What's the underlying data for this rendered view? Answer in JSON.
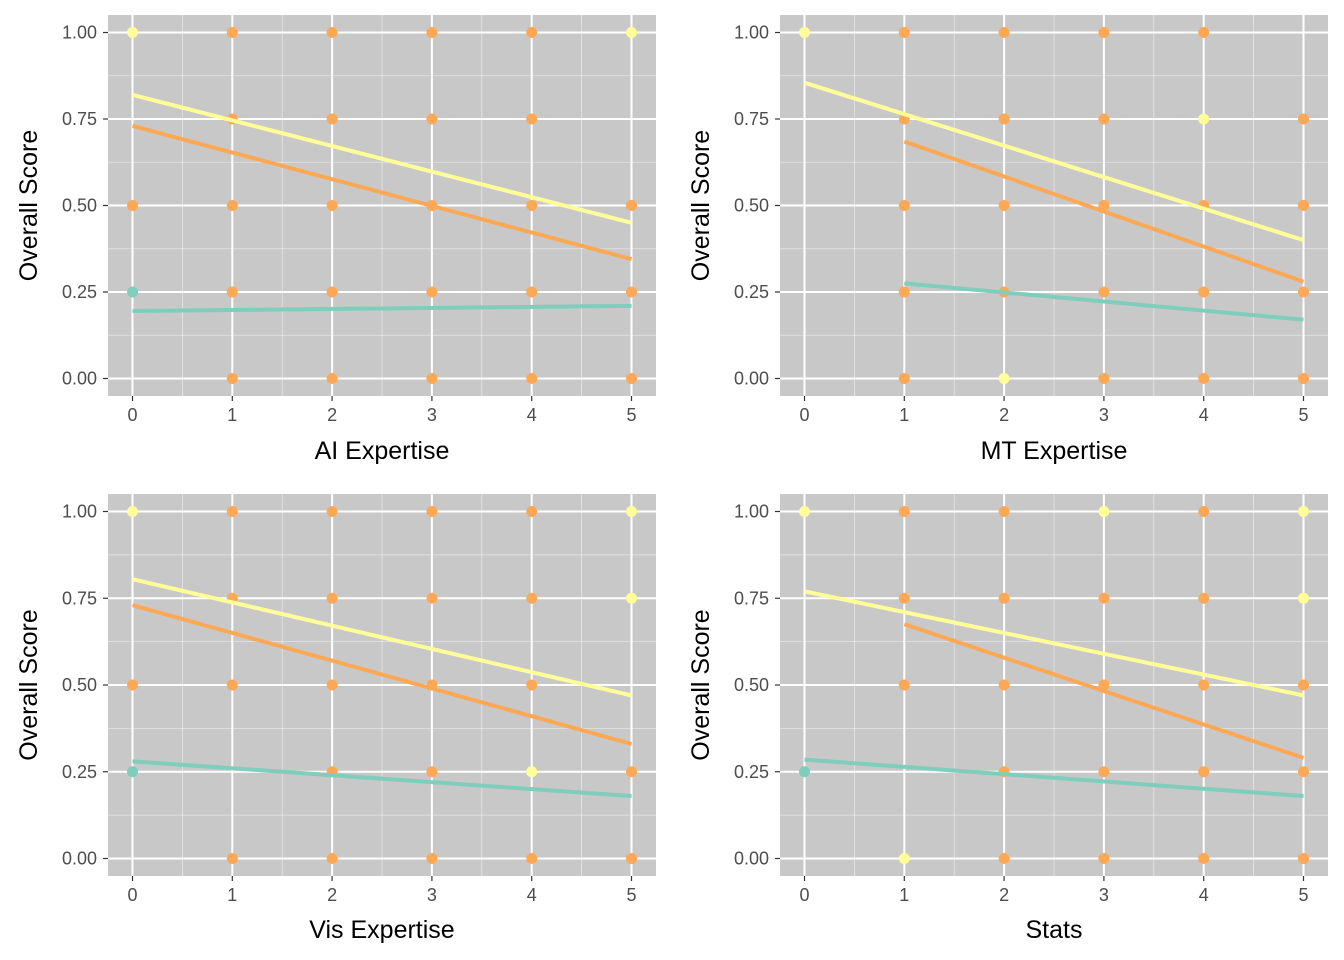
{
  "colors": {
    "panel_bg": "#C8C8C8",
    "grid": "#FFFFFF",
    "tick_text": "#4D4D4D",
    "yellow": "#FFFF99",
    "orange": "#FDA855",
    "teal": "#7FCDBB"
  },
  "chart_data": [
    {
      "type": "scatter",
      "xlabel": "AI Expertise",
      "ylabel": "Overall Score",
      "xlim": [
        0,
        5
      ],
      "ylim": [
        0,
        1
      ],
      "xticks": [
        "0",
        "1",
        "2",
        "3",
        "4",
        "5"
      ],
      "yticks": [
        "0.00",
        "0.25",
        "0.50",
        "0.75",
        "1.00"
      ],
      "grid": true,
      "legend": "none",
      "points": [
        {
          "x": 0,
          "y": 1,
          "color": "yellow"
        },
        {
          "x": 5,
          "y": 1,
          "color": "yellow"
        },
        {
          "x": 1,
          "y": 1,
          "color": "orange"
        },
        {
          "x": 2,
          "y": 1,
          "color": "orange"
        },
        {
          "x": 3,
          "y": 1,
          "color": "orange"
        },
        {
          "x": 4,
          "y": 1,
          "color": "orange"
        },
        {
          "x": 1,
          "y": 0.75,
          "color": "orange"
        },
        {
          "x": 2,
          "y": 0.75,
          "color": "orange"
        },
        {
          "x": 3,
          "y": 0.75,
          "color": "orange"
        },
        {
          "x": 4,
          "y": 0.75,
          "color": "orange"
        },
        {
          "x": 0,
          "y": 0.5,
          "color": "orange"
        },
        {
          "x": 1,
          "y": 0.5,
          "color": "orange"
        },
        {
          "x": 2,
          "y": 0.5,
          "color": "orange"
        },
        {
          "x": 3,
          "y": 0.5,
          "color": "orange"
        },
        {
          "x": 4,
          "y": 0.5,
          "color": "orange"
        },
        {
          "x": 5,
          "y": 0.5,
          "color": "orange"
        },
        {
          "x": 0,
          "y": 0.25,
          "color": "teal"
        },
        {
          "x": 1,
          "y": 0.25,
          "color": "orange"
        },
        {
          "x": 2,
          "y": 0.25,
          "color": "orange"
        },
        {
          "x": 3,
          "y": 0.25,
          "color": "orange"
        },
        {
          "x": 4,
          "y": 0.25,
          "color": "orange"
        },
        {
          "x": 5,
          "y": 0.25,
          "color": "orange"
        },
        {
          "x": 1,
          "y": 0,
          "color": "orange"
        },
        {
          "x": 2,
          "y": 0,
          "color": "orange"
        },
        {
          "x": 3,
          "y": 0,
          "color": "orange"
        },
        {
          "x": 4,
          "y": 0,
          "color": "orange"
        },
        {
          "x": 5,
          "y": 0,
          "color": "orange"
        }
      ],
      "lines": [
        {
          "color": "yellow",
          "x": [
            0,
            5
          ],
          "y": [
            0.82,
            0.45
          ]
        },
        {
          "color": "orange",
          "x": [
            0,
            5
          ],
          "y": [
            0.73,
            0.345
          ]
        },
        {
          "color": "teal",
          "x": [
            0,
            5
          ],
          "y": [
            0.195,
            0.21
          ]
        }
      ]
    },
    {
      "type": "scatter",
      "xlabel": "MT Expertise",
      "ylabel": "Overall Score",
      "xlim": [
        0,
        5
      ],
      "ylim": [
        0,
        1
      ],
      "xticks": [
        "0",
        "1",
        "2",
        "3",
        "4",
        "5"
      ],
      "yticks": [
        "0.00",
        "0.25",
        "0.50",
        "0.75",
        "1.00"
      ],
      "grid": true,
      "legend": "none",
      "points": [
        {
          "x": 0,
          "y": 1,
          "color": "yellow"
        },
        {
          "x": 1,
          "y": 1,
          "color": "orange"
        },
        {
          "x": 2,
          "y": 1,
          "color": "orange"
        },
        {
          "x": 3,
          "y": 1,
          "color": "orange"
        },
        {
          "x": 4,
          "y": 1,
          "color": "orange"
        },
        {
          "x": 1,
          "y": 0.75,
          "color": "orange"
        },
        {
          "x": 2,
          "y": 0.75,
          "color": "orange"
        },
        {
          "x": 3,
          "y": 0.75,
          "color": "orange"
        },
        {
          "x": 5,
          "y": 0.75,
          "color": "orange"
        },
        {
          "x": 4,
          "y": 0.75,
          "color": "yellow"
        },
        {
          "x": 1,
          "y": 0.5,
          "color": "orange"
        },
        {
          "x": 2,
          "y": 0.5,
          "color": "orange"
        },
        {
          "x": 3,
          "y": 0.5,
          "color": "orange"
        },
        {
          "x": 4,
          "y": 0.5,
          "color": "orange"
        },
        {
          "x": 5,
          "y": 0.5,
          "color": "orange"
        },
        {
          "x": 1,
          "y": 0.25,
          "color": "orange"
        },
        {
          "x": 2,
          "y": 0.25,
          "color": "orange"
        },
        {
          "x": 3,
          "y": 0.25,
          "color": "orange"
        },
        {
          "x": 4,
          "y": 0.25,
          "color": "orange"
        },
        {
          "x": 5,
          "y": 0.25,
          "color": "orange"
        },
        {
          "x": 1,
          "y": 0,
          "color": "orange"
        },
        {
          "x": 3,
          "y": 0,
          "color": "orange"
        },
        {
          "x": 4,
          "y": 0,
          "color": "orange"
        },
        {
          "x": 5,
          "y": 0,
          "color": "orange"
        },
        {
          "x": 2,
          "y": 0,
          "color": "yellow"
        }
      ],
      "lines": [
        {
          "color": "yellow",
          "x": [
            0,
            5
          ],
          "y": [
            0.855,
            0.4
          ]
        },
        {
          "color": "orange",
          "x": [
            1,
            5
          ],
          "y": [
            0.685,
            0.28
          ]
        },
        {
          "color": "teal",
          "x": [
            1,
            5
          ],
          "y": [
            0.275,
            0.17
          ]
        }
      ]
    },
    {
      "type": "scatter",
      "xlabel": "Vis Expertise",
      "ylabel": "Overall Score",
      "xlim": [
        0,
        5
      ],
      "ylim": [
        0,
        1
      ],
      "xticks": [
        "0",
        "1",
        "2",
        "3",
        "4",
        "5"
      ],
      "yticks": [
        "0.00",
        "0.25",
        "0.50",
        "0.75",
        "1.00"
      ],
      "grid": true,
      "legend": "none",
      "points": [
        {
          "x": 0,
          "y": 1,
          "color": "yellow"
        },
        {
          "x": 5,
          "y": 1,
          "color": "yellow"
        },
        {
          "x": 1,
          "y": 1,
          "color": "orange"
        },
        {
          "x": 2,
          "y": 1,
          "color": "orange"
        },
        {
          "x": 3,
          "y": 1,
          "color": "orange"
        },
        {
          "x": 4,
          "y": 1,
          "color": "orange"
        },
        {
          "x": 1,
          "y": 0.75,
          "color": "orange"
        },
        {
          "x": 2,
          "y": 0.75,
          "color": "orange"
        },
        {
          "x": 3,
          "y": 0.75,
          "color": "orange"
        },
        {
          "x": 4,
          "y": 0.75,
          "color": "orange"
        },
        {
          "x": 5,
          "y": 0.75,
          "color": "yellow"
        },
        {
          "x": 0,
          "y": 0.5,
          "color": "orange"
        },
        {
          "x": 1,
          "y": 0.5,
          "color": "orange"
        },
        {
          "x": 2,
          "y": 0.5,
          "color": "orange"
        },
        {
          "x": 3,
          "y": 0.5,
          "color": "orange"
        },
        {
          "x": 4,
          "y": 0.5,
          "color": "orange"
        },
        {
          "x": 0,
          "y": 0.25,
          "color": "teal"
        },
        {
          "x": 2,
          "y": 0.25,
          "color": "orange"
        },
        {
          "x": 3,
          "y": 0.25,
          "color": "orange"
        },
        {
          "x": 5,
          "y": 0.25,
          "color": "orange"
        },
        {
          "x": 4,
          "y": 0.25,
          "color": "yellow"
        },
        {
          "x": 1,
          "y": 0,
          "color": "orange"
        },
        {
          "x": 2,
          "y": 0,
          "color": "orange"
        },
        {
          "x": 3,
          "y": 0,
          "color": "orange"
        },
        {
          "x": 4,
          "y": 0,
          "color": "orange"
        },
        {
          "x": 5,
          "y": 0,
          "color": "orange"
        }
      ],
      "lines": [
        {
          "color": "yellow",
          "x": [
            0,
            5
          ],
          "y": [
            0.805,
            0.47
          ]
        },
        {
          "color": "orange",
          "x": [
            0,
            5
          ],
          "y": [
            0.73,
            0.33
          ]
        },
        {
          "color": "teal",
          "x": [
            0,
            5
          ],
          "y": [
            0.28,
            0.18
          ]
        }
      ]
    },
    {
      "type": "scatter",
      "xlabel": "Stats",
      "ylabel": "Overall Score",
      "xlim": [
        0,
        5
      ],
      "ylim": [
        0,
        1
      ],
      "xticks": [
        "0",
        "1",
        "2",
        "3",
        "4",
        "5"
      ],
      "yticks": [
        "0.00",
        "0.25",
        "0.50",
        "0.75",
        "1.00"
      ],
      "grid": true,
      "legend": "none",
      "points": [
        {
          "x": 0,
          "y": 1,
          "color": "yellow"
        },
        {
          "x": 3,
          "y": 1,
          "color": "yellow"
        },
        {
          "x": 5,
          "y": 1,
          "color": "yellow"
        },
        {
          "x": 1,
          "y": 1,
          "color": "orange"
        },
        {
          "x": 2,
          "y": 1,
          "color": "orange"
        },
        {
          "x": 4,
          "y": 1,
          "color": "orange"
        },
        {
          "x": 1,
          "y": 0.75,
          "color": "orange"
        },
        {
          "x": 2,
          "y": 0.75,
          "color": "orange"
        },
        {
          "x": 3,
          "y": 0.75,
          "color": "orange"
        },
        {
          "x": 4,
          "y": 0.75,
          "color": "orange"
        },
        {
          "x": 5,
          "y": 0.75,
          "color": "yellow"
        },
        {
          "x": 1,
          "y": 0.5,
          "color": "orange"
        },
        {
          "x": 2,
          "y": 0.5,
          "color": "orange"
        },
        {
          "x": 3,
          "y": 0.5,
          "color": "orange"
        },
        {
          "x": 4,
          "y": 0.5,
          "color": "orange"
        },
        {
          "x": 5,
          "y": 0.5,
          "color": "orange"
        },
        {
          "x": 0,
          "y": 0.25,
          "color": "teal"
        },
        {
          "x": 2,
          "y": 0.25,
          "color": "orange"
        },
        {
          "x": 3,
          "y": 0.25,
          "color": "orange"
        },
        {
          "x": 4,
          "y": 0.25,
          "color": "orange"
        },
        {
          "x": 5,
          "y": 0.25,
          "color": "orange"
        },
        {
          "x": 1,
          "y": 0,
          "color": "yellow"
        },
        {
          "x": 2,
          "y": 0,
          "color": "orange"
        },
        {
          "x": 3,
          "y": 0,
          "color": "orange"
        },
        {
          "x": 4,
          "y": 0,
          "color": "orange"
        },
        {
          "x": 5,
          "y": 0,
          "color": "orange"
        }
      ],
      "lines": [
        {
          "color": "yellow",
          "x": [
            0,
            5
          ],
          "y": [
            0.77,
            0.47
          ]
        },
        {
          "color": "orange",
          "x": [
            1,
            5
          ],
          "y": [
            0.675,
            0.29
          ]
        },
        {
          "color": "teal",
          "x": [
            0,
            5
          ],
          "y": [
            0.285,
            0.18
          ]
        }
      ]
    }
  ]
}
